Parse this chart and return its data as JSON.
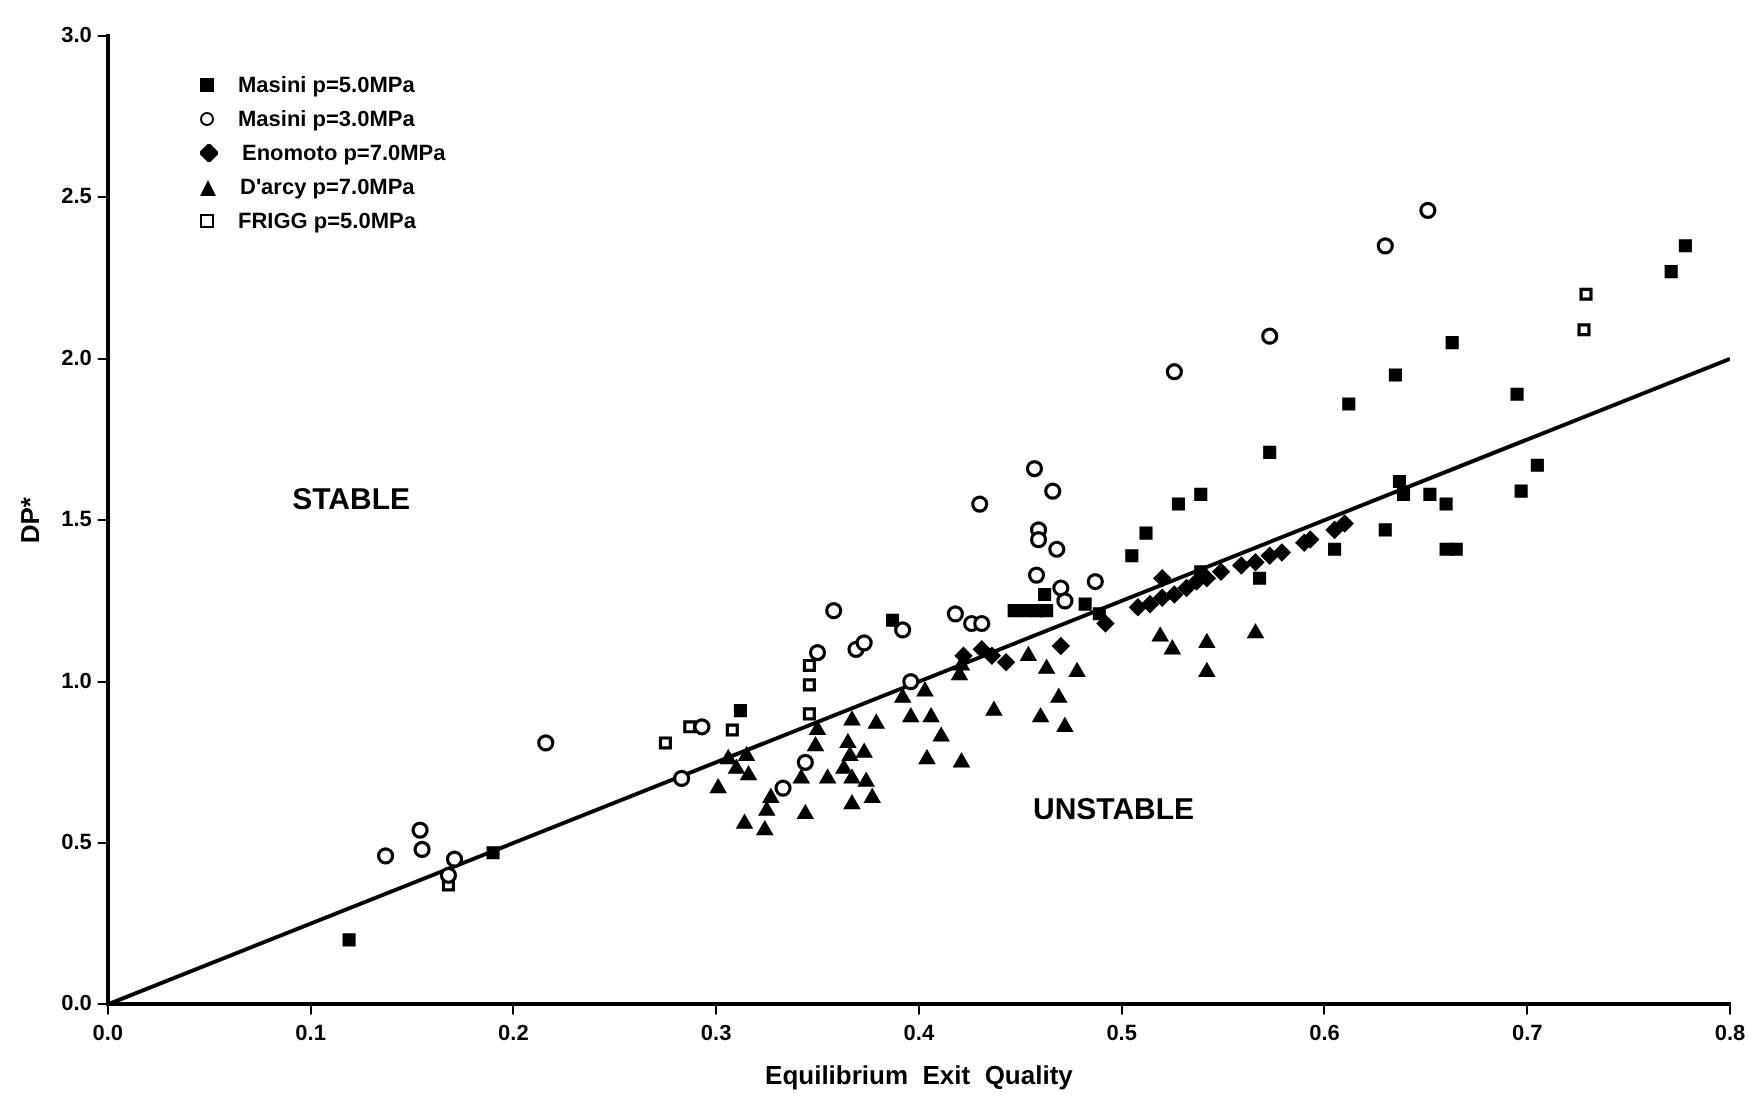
{
  "chart_data": {
    "type": "scatter",
    "xlabel": "Equilibrium  Exit  Quality",
    "ylabel": "DP*",
    "xlim": [
      0,
      0.8
    ],
    "ylim": [
      0,
      3.0
    ],
    "xticks": [
      {
        "value": 0,
        "label": "0.0"
      },
      0.1,
      0.2,
      0.3,
      0.4,
      0.5,
      0.6,
      0.7,
      0.8
    ],
    "yticks": [
      {
        "value": 0,
        "label": "0.0"
      },
      0.5,
      {
        "value": 1,
        "label": "1.0"
      },
      1.5,
      {
        "value": 2,
        "label": "2.0"
      },
      2.5,
      {
        "value": 3,
        "label": "3.0"
      }
    ],
    "grid": false,
    "legend": "top left",
    "annotations": [
      "STABLE",
      "UNSTABLE"
    ],
    "series": [
      {
        "name": "Masini p=5.0MPa",
        "color": "#000000",
        "marker": "square",
        "x": [
          0.119,
          0.19,
          0.312,
          0.387,
          0.447,
          0.453,
          0.458,
          0.463,
          0.462,
          0.482,
          0.489,
          0.505,
          0.512,
          0.528,
          0.539,
          0.539,
          0.568,
          0.573,
          0.605,
          0.612,
          0.63,
          0.635,
          0.637,
          0.639,
          0.652,
          0.66,
          0.66,
          0.665,
          0.663,
          0.695,
          0.697,
          0.705,
          0.771,
          0.778
        ],
        "values": [
          0.2,
          0.47,
          0.91,
          1.19,
          1.22,
          1.22,
          1.22,
          1.22,
          1.27,
          1.24,
          1.21,
          1.39,
          1.46,
          1.55,
          1.58,
          1.34,
          1.32,
          1.71,
          1.41,
          1.86,
          1.47,
          1.95,
          1.62,
          1.58,
          1.58,
          1.55,
          1.41,
          1.41,
          2.05,
          1.89,
          1.59,
          1.67,
          2.27,
          2.35
        ]
      },
      {
        "name": "Masini p=3.0MPa",
        "color": "#000000",
        "marker": "circle",
        "x": [
          0.137,
          0.154,
          0.155,
          0.171,
          0.168,
          0.216,
          0.283,
          0.293,
          0.333,
          0.344,
          0.35,
          0.358,
          0.369,
          0.373,
          0.392,
          0.396,
          0.418,
          0.426,
          0.431,
          0.43,
          0.457,
          0.466,
          0.459,
          0.459,
          0.468,
          0.458,
          0.47,
          0.487,
          0.472,
          0.526,
          0.573,
          0.63,
          0.651
        ],
        "values": [
          0.46,
          0.54,
          0.48,
          0.45,
          0.4,
          0.81,
          0.7,
          0.86,
          0.67,
          0.75,
          1.09,
          1.22,
          1.1,
          1.12,
          1.16,
          1.0,
          1.21,
          1.18,
          1.18,
          1.55,
          1.66,
          1.59,
          1.47,
          1.44,
          1.41,
          1.33,
          1.29,
          1.31,
          1.25,
          1.96,
          2.07,
          2.35,
          2.46
        ]
      },
      {
        "name": "Enomoto p=7.0MPa",
        "color": "#000000",
        "marker": "diamond",
        "x": [
          0.422,
          0.431,
          0.436,
          0.443,
          0.47,
          0.492,
          0.508,
          0.514,
          0.52,
          0.526,
          0.52,
          0.532,
          0.537,
          0.542,
          0.549,
          0.559,
          0.566,
          0.573,
          0.579,
          0.59,
          0.593,
          0.605,
          0.61
        ],
        "values": [
          1.08,
          1.1,
          1.08,
          1.06,
          1.11,
          1.18,
          1.23,
          1.24,
          1.26,
          1.27,
          1.32,
          1.29,
          1.31,
          1.32,
          1.34,
          1.36,
          1.37,
          1.39,
          1.4,
          1.43,
          1.44,
          1.47,
          1.49
        ]
      },
      {
        "name": "D'arcy p=7.0MPa",
        "color": "#000000",
        "marker": "triangle",
        "x": [
          0.301,
          0.306,
          0.31,
          0.315,
          0.316,
          0.314,
          0.324,
          0.325,
          0.327,
          0.342,
          0.344,
          0.347,
          0.349,
          0.35,
          0.355,
          0.363,
          0.365,
          0.366,
          0.367,
          0.367,
          0.367,
          0.373,
          0.374,
          0.377,
          0.379,
          0.392,
          0.396,
          0.403,
          0.404,
          0.406,
          0.411,
          0.42,
          0.421,
          0.421,
          0.437,
          0.454,
          0.46,
          0.463,
          0.469,
          0.472,
          0.478,
          0.519,
          0.525,
          0.542,
          0.542,
          0.566
        ],
        "values": [
          0.67,
          0.76,
          0.73,
          0.77,
          0.71,
          0.56,
          0.54,
          0.6,
          0.64,
          0.7,
          0.59,
          null,
          0.8,
          0.85,
          0.7,
          0.73,
          0.81,
          0.77,
          0.88,
          0.7,
          0.62,
          0.78,
          0.69,
          0.64,
          0.87,
          0.95,
          0.89,
          0.97,
          0.76,
          0.89,
          0.83,
          1.02,
          1.05,
          0.75,
          0.91,
          1.08,
          0.89,
          1.04,
          0.95,
          0.86,
          1.03,
          1.14,
          1.1,
          1.12,
          1.03,
          1.15
        ]
      },
      {
        "name": "FRIGG p=5.0MPa",
        "color": "#000000",
        "marker": "square",
        "x": [
          0.168,
          0.275,
          0.287,
          0.308,
          0.346,
          0.346,
          0.346,
          0.728,
          0.729
        ],
        "values": [
          0.37,
          0.81,
          0.86,
          0.85,
          0.9,
          0.99,
          1.05,
          2.09,
          2.2
        ]
      },
      {
        "type": "line",
        "color": "#000000",
        "marker": "none",
        "line_style": "solid",
        "x": [
          0,
          0.8
        ],
        "values": [
          0,
          2.0
        ]
      }
    ]
  }
}
